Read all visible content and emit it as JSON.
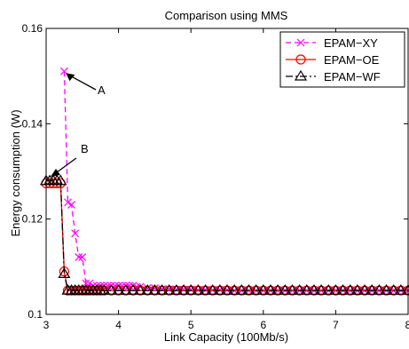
{
  "chart_data": {
    "type": "line",
    "title": "Comparison using MMS",
    "xlabel": "Link Capacity (100Mb/s)",
    "ylabel": "Energy consumption (W)",
    "xlim": [
      3,
      8
    ],
    "ylim": [
      0.1,
      0.16
    ],
    "xticks": [
      3,
      4,
      5,
      6,
      7,
      8
    ],
    "yticks": [
      0.1,
      0.12,
      0.14,
      0.16
    ],
    "xtick_labels": [
      "3",
      "4",
      "5",
      "6",
      "7",
      "8"
    ],
    "ytick_labels": [
      "0.1",
      "0.12",
      "0.14",
      "0.16"
    ],
    "grid": false,
    "legend_position": "top-right",
    "series": [
      {
        "name": "EPAM−XY",
        "color": "#ff00ff",
        "line_style": "dashed",
        "marker": "x",
        "x": [
          3.25,
          3.3,
          3.35,
          3.4,
          3.45,
          3.5,
          3.55,
          3.6,
          3.65,
          3.7,
          3.75,
          3.8,
          3.85,
          3.9,
          3.95,
          4.0,
          4.05,
          4.1,
          4.15,
          4.2,
          4.25,
          4.3,
          4.4,
          4.5,
          4.6,
          4.7,
          4.8,
          4.9,
          5.0,
          5.1,
          5.2,
          5.3,
          5.4,
          5.5,
          5.6,
          5.7,
          5.8,
          5.9,
          6.0,
          6.1,
          6.2,
          6.3,
          6.4,
          6.5,
          6.6,
          6.7,
          6.8,
          6.9,
          7.0,
          7.1,
          7.2,
          7.3,
          7.4,
          7.5,
          7.6,
          7.7,
          7.8,
          7.9,
          8.0
        ],
        "y": [
          0.151,
          0.1235,
          0.123,
          0.117,
          0.112,
          0.112,
          0.1065,
          0.1065,
          0.106,
          0.106,
          0.106,
          0.106,
          0.106,
          0.106,
          0.106,
          0.106,
          0.106,
          0.106,
          0.106,
          0.106,
          0.1058,
          0.1058,
          0.1055,
          0.1055,
          0.1053,
          0.1053,
          0.1052,
          0.1052,
          0.1052,
          0.1051,
          0.1051,
          0.1051,
          0.1051,
          0.1051,
          0.105,
          0.105,
          0.105,
          0.105,
          0.105,
          0.105,
          0.105,
          0.105,
          0.105,
          0.105,
          0.105,
          0.105,
          0.105,
          0.105,
          0.105,
          0.105,
          0.105,
          0.105,
          0.105,
          0.105,
          0.105,
          0.105,
          0.105,
          0.105,
          0.105
        ]
      },
      {
        "name": "EPAM−OE",
        "color": "#ff0000",
        "line_style": "solid",
        "marker": "o",
        "x": [
          3.0,
          3.05,
          3.1,
          3.15,
          3.2,
          3.25,
          3.3,
          3.35,
          3.4,
          3.45,
          3.5,
          3.55,
          3.6,
          3.65,
          3.7,
          3.75,
          3.8,
          3.9,
          4.0,
          4.1,
          4.2,
          4.3,
          4.4,
          4.5,
          4.6,
          4.7,
          4.8,
          4.9,
          5.0,
          5.1,
          5.2,
          5.3,
          5.4,
          5.5,
          5.6,
          5.7,
          5.8,
          5.9,
          6.0,
          6.1,
          6.2,
          6.3,
          6.4,
          6.5,
          6.6,
          6.7,
          6.8,
          6.9,
          7.0,
          7.1,
          7.2,
          7.3,
          7.4,
          7.5,
          7.6,
          7.7,
          7.8,
          7.9,
          8.0
        ],
        "y": [
          0.1275,
          0.1275,
          0.1275,
          0.1275,
          0.1275,
          0.109,
          0.105,
          0.105,
          0.105,
          0.105,
          0.105,
          0.105,
          0.105,
          0.105,
          0.105,
          0.105,
          0.105,
          0.105,
          0.105,
          0.105,
          0.105,
          0.105,
          0.105,
          0.105,
          0.105,
          0.105,
          0.105,
          0.105,
          0.105,
          0.105,
          0.105,
          0.105,
          0.105,
          0.105,
          0.105,
          0.105,
          0.105,
          0.105,
          0.105,
          0.105,
          0.105,
          0.105,
          0.105,
          0.105,
          0.105,
          0.105,
          0.105,
          0.105,
          0.105,
          0.105,
          0.105,
          0.105,
          0.105,
          0.105,
          0.105,
          0.105,
          0.105,
          0.105,
          0.105
        ]
      },
      {
        "name": "EPAM−WF",
        "color": "#000000",
        "line_style": "dashdot",
        "marker": "^",
        "x": [
          3.0,
          3.05,
          3.1,
          3.15,
          3.2,
          3.25,
          3.3,
          3.35,
          3.4,
          3.45,
          3.5,
          3.55,
          3.6,
          3.65,
          3.7,
          3.75,
          3.8,
          3.9,
          4.0,
          4.1,
          4.2,
          4.3,
          4.4,
          4.5,
          4.6,
          4.7,
          4.8,
          4.9,
          5.0,
          5.1,
          5.2,
          5.3,
          5.4,
          5.5,
          5.6,
          5.7,
          5.8,
          5.9,
          6.0,
          6.1,
          6.2,
          6.3,
          6.4,
          6.5,
          6.6,
          6.7,
          6.8,
          6.9,
          7.0,
          7.1,
          7.2,
          7.3,
          7.4,
          7.5,
          7.6,
          7.7,
          7.8,
          7.9,
          8.0
        ],
        "y": [
          0.128,
          0.128,
          0.128,
          0.128,
          0.128,
          0.1085,
          0.105,
          0.105,
          0.105,
          0.105,
          0.105,
          0.105,
          0.105,
          0.105,
          0.105,
          0.105,
          0.105,
          0.105,
          0.105,
          0.105,
          0.105,
          0.105,
          0.105,
          0.105,
          0.105,
          0.105,
          0.105,
          0.105,
          0.105,
          0.105,
          0.105,
          0.105,
          0.105,
          0.105,
          0.105,
          0.105,
          0.105,
          0.105,
          0.105,
          0.105,
          0.105,
          0.105,
          0.105,
          0.105,
          0.105,
          0.105,
          0.105,
          0.105,
          0.105,
          0.105,
          0.105,
          0.105,
          0.105,
          0.105,
          0.105,
          0.105,
          0.105,
          0.105,
          0.105
        ]
      }
    ],
    "annotations": [
      {
        "text": "A",
        "x": 3.25,
        "y": 0.151
      },
      {
        "text": "B",
        "x": 3.05,
        "y": 0.1285
      }
    ]
  }
}
